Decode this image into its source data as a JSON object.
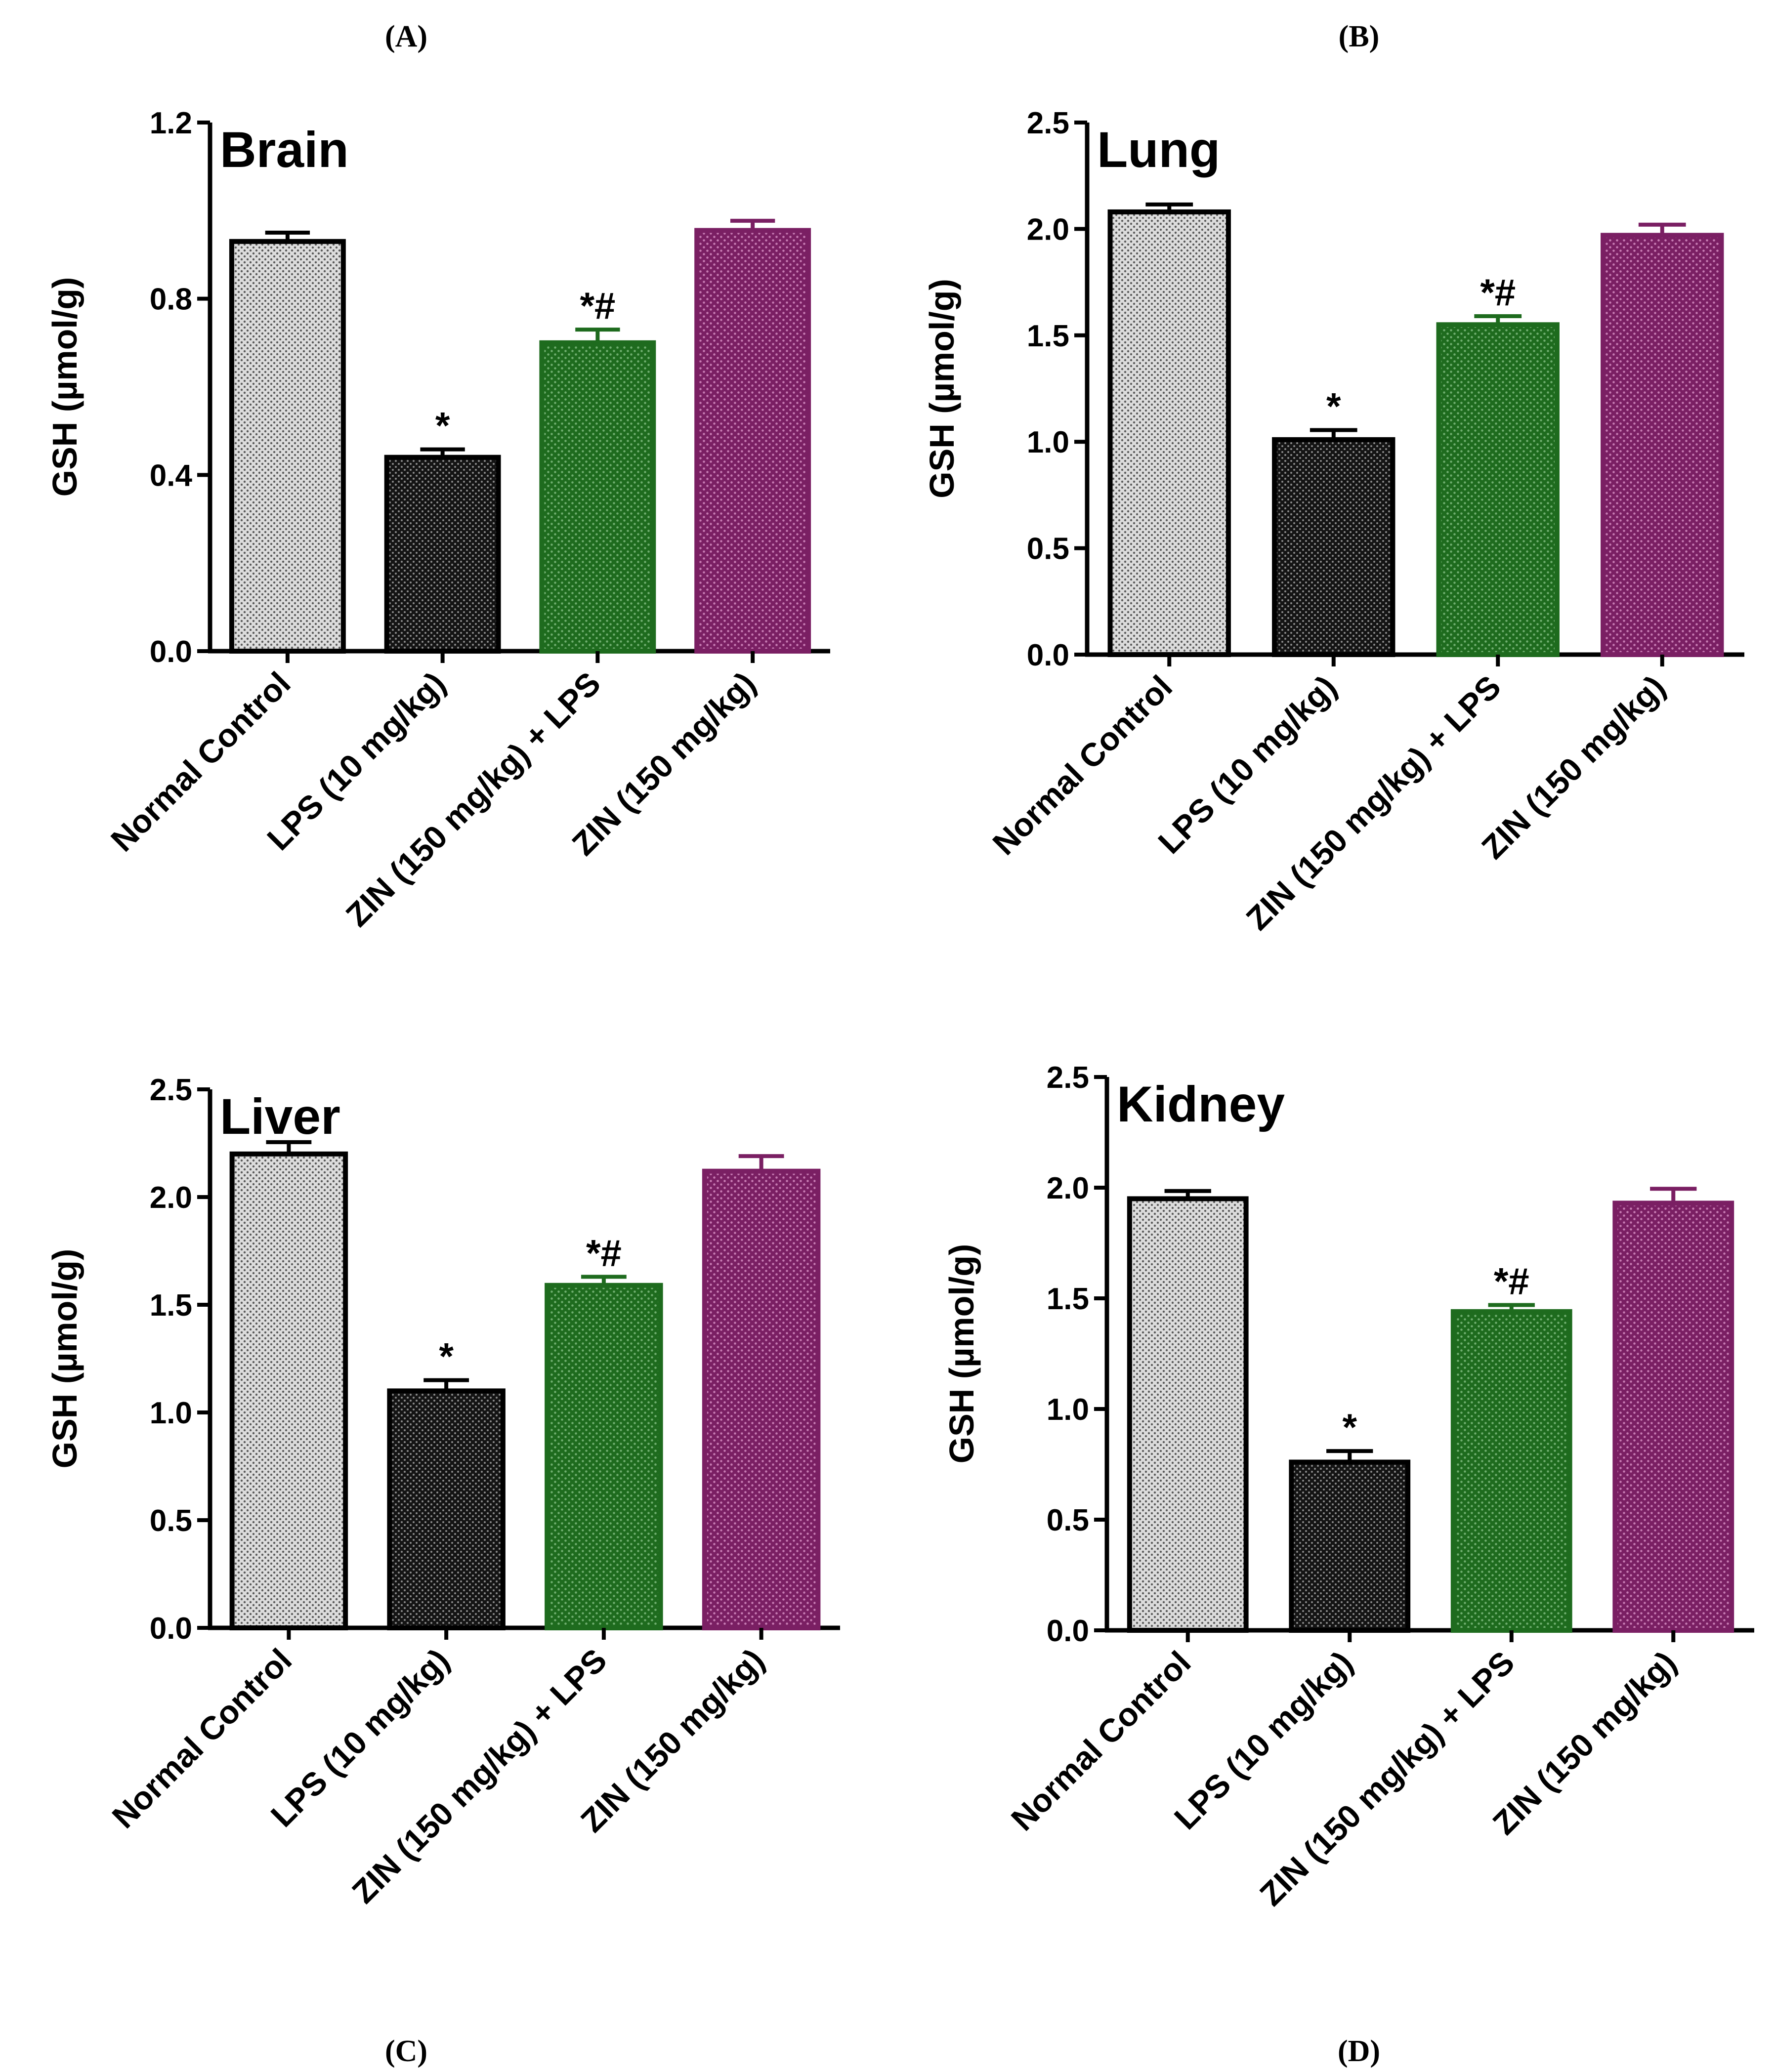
{
  "panel_labels": [
    "(A)",
    "(B)",
    "(C)",
    "(D)"
  ],
  "colors": {
    "normal_control": "#b8b8b8",
    "lps": "#1c1c1c",
    "zin_lps": "#1e6b1e",
    "zin": "#7a1f63",
    "axis": "#000000"
  },
  "chart_data": [
    {
      "type": "bar",
      "panel": "(A)",
      "title": "Brain",
      "ylabel": "GSH (µmol/g)",
      "xlabel": "",
      "ylim": [
        0,
        1.2
      ],
      "yticks": [
        0.0,
        0.4,
        0.8,
        1.2
      ],
      "ytick_labels": [
        "0.0",
        "0.4",
        "0.8",
        "1.2"
      ],
      "categories": [
        "Normal Control",
        "LPS (10 mg/kg)",
        "ZIN (150 mg/kg) + LPS",
        "ZIN (150 mg/kg)"
      ],
      "values": [
        0.93,
        0.44,
        0.7,
        0.955
      ],
      "errors": [
        0.02,
        0.018,
        0.03,
        0.022
      ],
      "significance": [
        "",
        "*",
        "*#",
        ""
      ]
    },
    {
      "type": "bar",
      "panel": "(B)",
      "title": "Lung",
      "ylabel": "GSH (µmol/g)",
      "xlabel": "",
      "ylim": [
        0,
        2.5
      ],
      "yticks": [
        0.0,
        0.5,
        1.0,
        1.5,
        2.0,
        2.5
      ],
      "ytick_labels": [
        "0.0",
        "0.5",
        "1.0",
        "1.5",
        "2.0",
        "2.5"
      ],
      "categories": [
        "Normal Control",
        "LPS (10 mg/kg)",
        "ZIN (150 mg/kg) + LPS",
        "ZIN (150 mg/kg)"
      ],
      "values": [
        2.08,
        1.01,
        1.55,
        1.97
      ],
      "errors": [
        0.035,
        0.045,
        0.04,
        0.05
      ],
      "significance": [
        "",
        "*",
        "*#",
        ""
      ]
    },
    {
      "type": "bar",
      "panel": "(C)",
      "title": "Liver",
      "ylabel": "GSH (µmol/g)",
      "xlabel": "",
      "ylim": [
        0,
        2.5
      ],
      "yticks": [
        0.0,
        0.5,
        1.0,
        1.5,
        2.0,
        2.5
      ],
      "ytick_labels": [
        "0.0",
        "0.5",
        "1.0",
        "1.5",
        "2.0",
        "2.5"
      ],
      "categories": [
        "Normal Control",
        "LPS (10 mg/kg)",
        "ZIN (150 mg/kg) + LPS",
        "ZIN (150 mg/kg)"
      ],
      "values": [
        2.2,
        1.1,
        1.59,
        2.12
      ],
      "errors": [
        0.055,
        0.05,
        0.04,
        0.07
      ],
      "significance": [
        "",
        "*",
        "*#",
        ""
      ]
    },
    {
      "type": "bar",
      "panel": "(D)",
      "title": "Kidney",
      "ylabel": "GSH (µmol/g)",
      "xlabel": "",
      "ylim": [
        0,
        2.5
      ],
      "yticks": [
        0.0,
        0.5,
        1.0,
        1.5,
        2.0,
        2.5
      ],
      "ytick_labels": [
        "0.0",
        "0.5",
        "1.0",
        "1.5",
        "2.0",
        "2.5"
      ],
      "categories": [
        "Normal Control",
        "LPS (10 mg/kg)",
        "ZIN (150 mg/kg) + LPS",
        "ZIN (150 mg/kg)"
      ],
      "values": [
        1.95,
        0.76,
        1.44,
        1.93
      ],
      "errors": [
        0.035,
        0.05,
        0.03,
        0.065
      ],
      "significance": [
        "",
        "*",
        "*#",
        ""
      ]
    }
  ]
}
